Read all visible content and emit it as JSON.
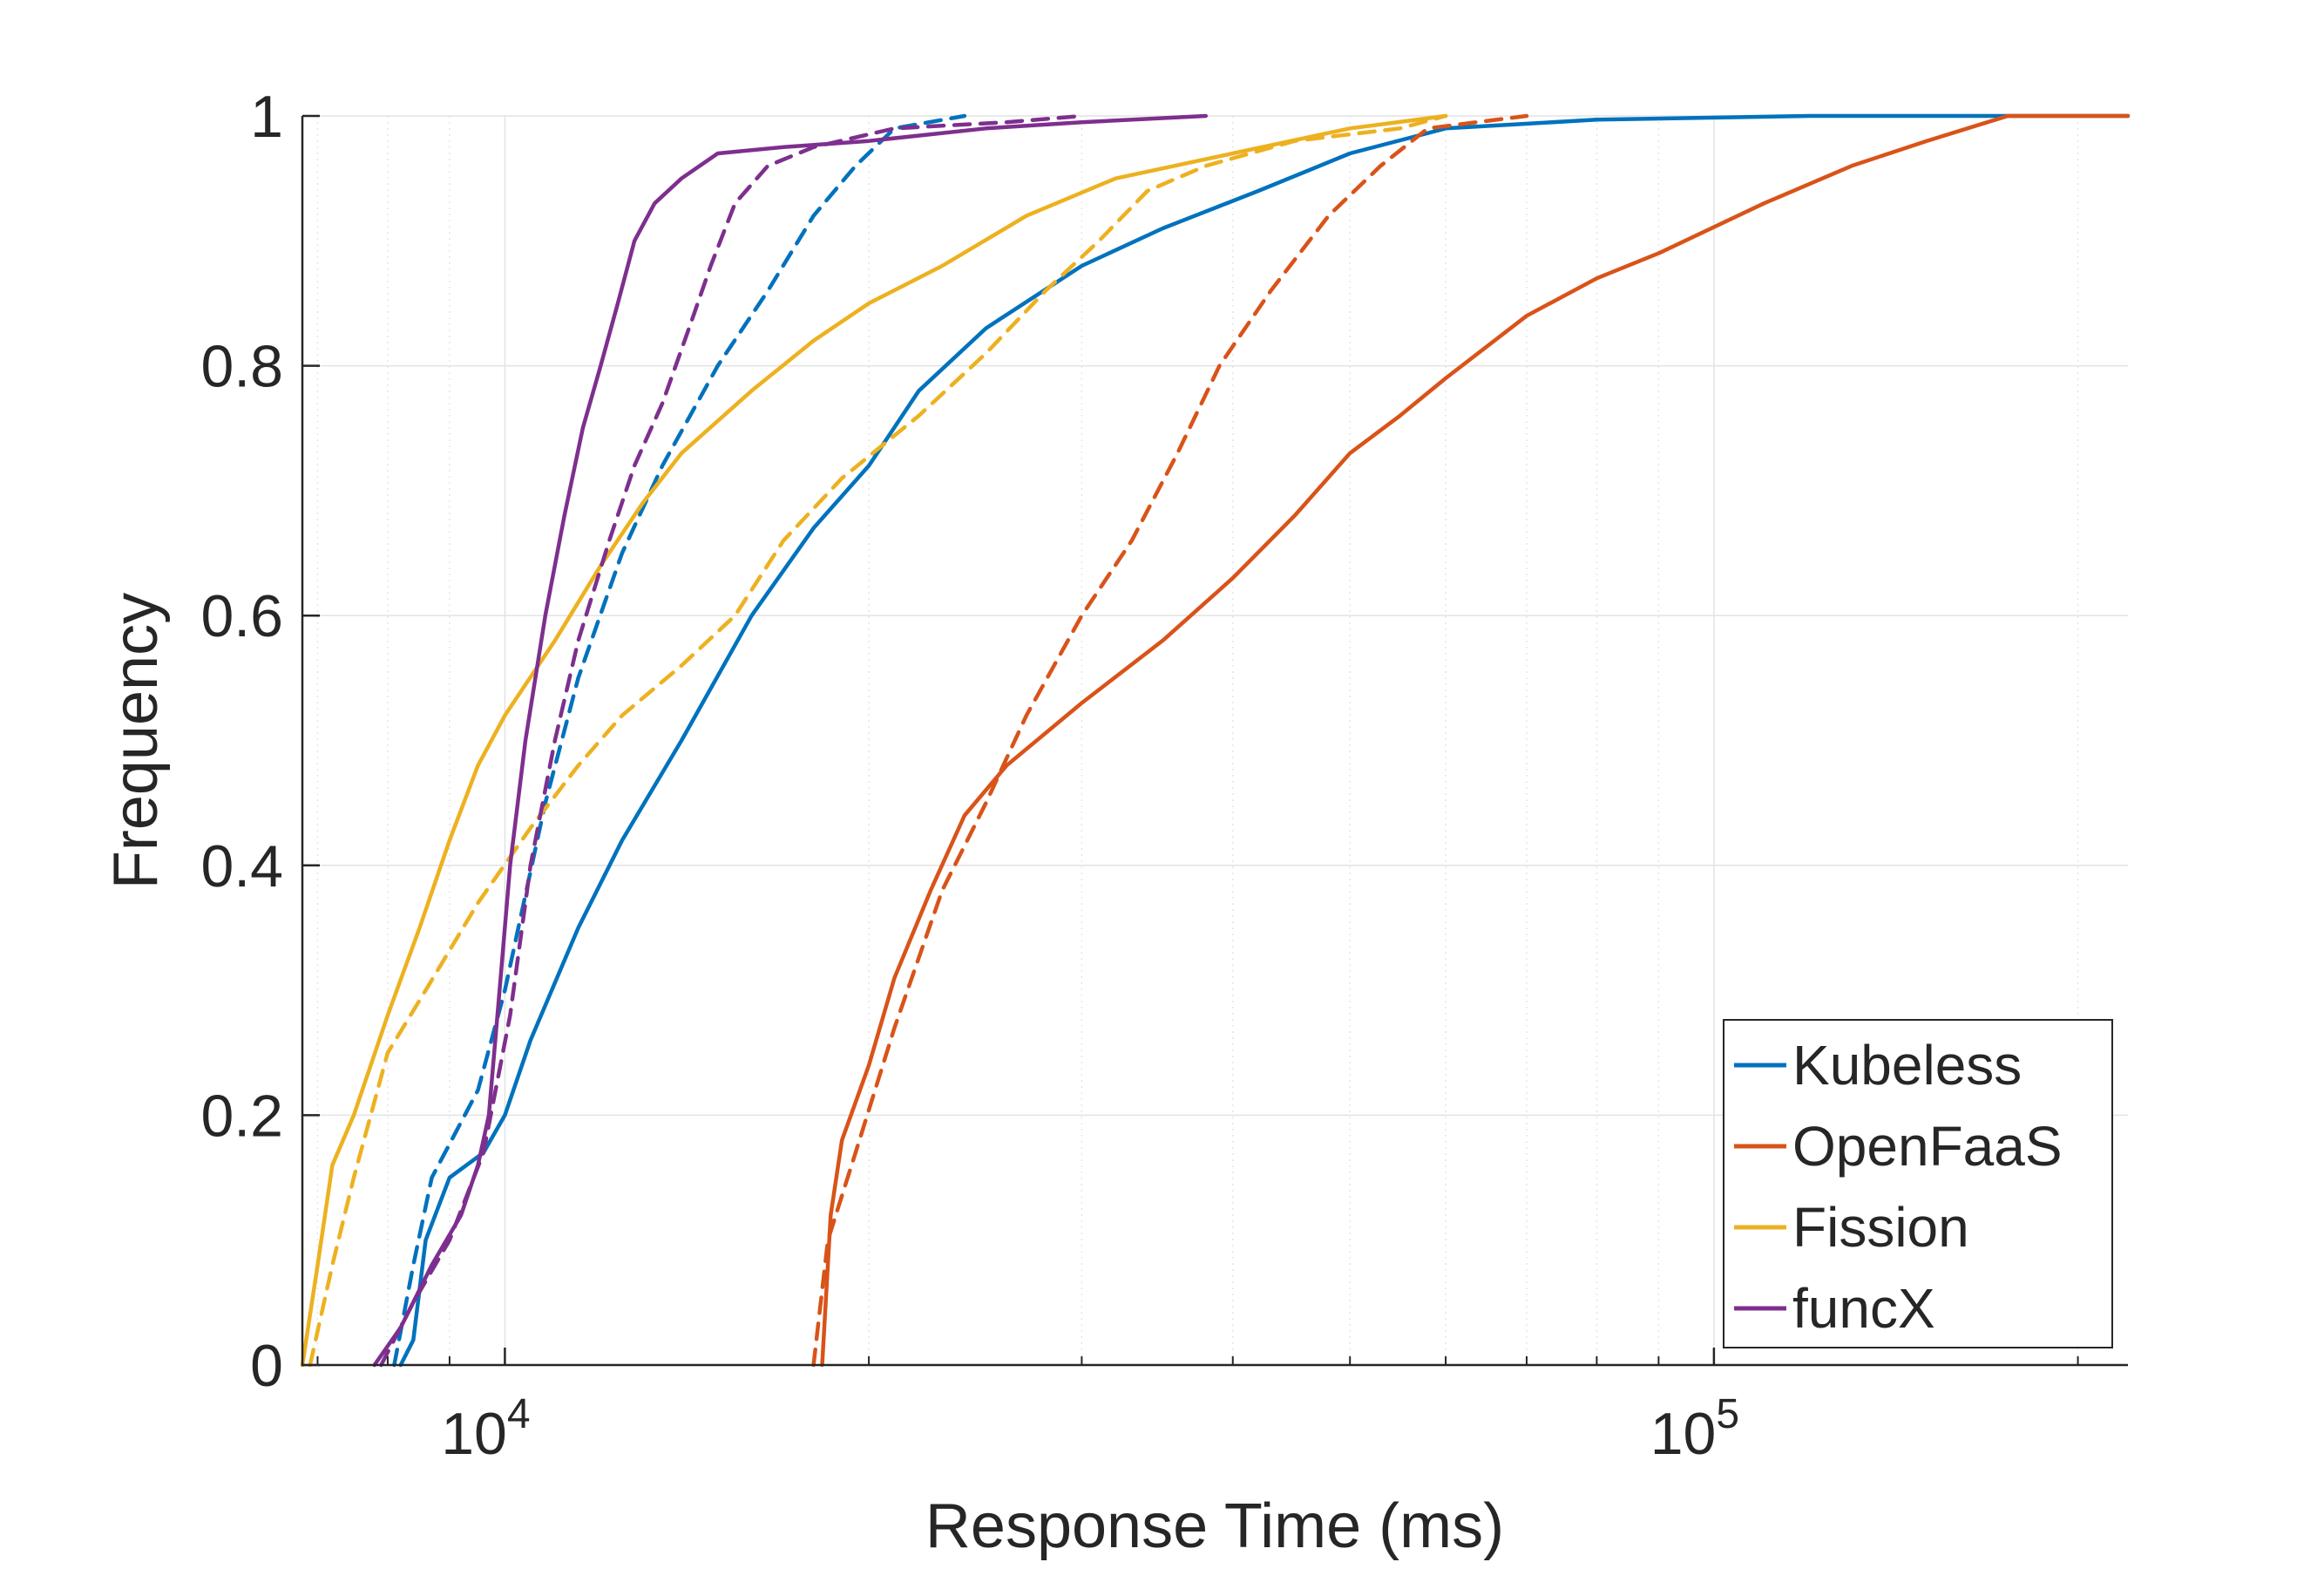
{
  "chart_data": {
    "type": "line",
    "title": "",
    "xlabel": "Response Time (ms)",
    "ylabel": "Frequency",
    "xscale": "log",
    "xlim": [
      6800,
      220000
    ],
    "ylim": [
      0,
      1
    ],
    "grid": true,
    "legend_position": "bottom-right",
    "x_ticks": [
      {
        "value": 10000,
        "base": "10",
        "exp": "4"
      },
      {
        "value": 100000,
        "base": "10",
        "exp": "5"
      }
    ],
    "y_ticks": [
      {
        "value": 0,
        "label": "0"
      },
      {
        "value": 0.2,
        "label": "0.2"
      },
      {
        "value": 0.4,
        "label": "0.4"
      },
      {
        "value": 0.6,
        "label": "0.6"
      },
      {
        "value": 0.8,
        "label": "0.8"
      },
      {
        "value": 1,
        "label": "1"
      }
    ],
    "legend": [
      {
        "name": "Kubeless",
        "color": "#0072BD"
      },
      {
        "name": "OpenFaaS",
        "color": "#D95319"
      },
      {
        "name": "Fission",
        "color": "#EDB120"
      },
      {
        "name": "funcX",
        "color": "#7E2F8E"
      }
    ],
    "series": [
      {
        "name": "Kubeless",
        "style": "solid",
        "color": "#0072BD",
        "points": [
          [
            8200,
            0
          ],
          [
            8400,
            0.02
          ],
          [
            8600,
            0.1
          ],
          [
            9000,
            0.15
          ],
          [
            9600,
            0.17
          ],
          [
            10000,
            0.2
          ],
          [
            10500,
            0.26
          ],
          [
            11500,
            0.35
          ],
          [
            12500,
            0.42
          ],
          [
            14000,
            0.5
          ],
          [
            16000,
            0.6
          ],
          [
            18000,
            0.67
          ],
          [
            20000,
            0.72
          ],
          [
            22000,
            0.78
          ],
          [
            25000,
            0.83
          ],
          [
            30000,
            0.88
          ],
          [
            35000,
            0.91
          ],
          [
            42000,
            0.94
          ],
          [
            50000,
            0.97
          ],
          [
            60000,
            0.99
          ],
          [
            80000,
            0.997
          ],
          [
            120000,
            1
          ],
          [
            220000,
            1
          ]
        ]
      },
      {
        "name": "Kubeless",
        "style": "dashed",
        "color": "#0072BD",
        "points": [
          [
            8100,
            0
          ],
          [
            8400,
            0.08
          ],
          [
            8700,
            0.15
          ],
          [
            9500,
            0.22
          ],
          [
            10000,
            0.3
          ],
          [
            10800,
            0.45
          ],
          [
            11500,
            0.55
          ],
          [
            12500,
            0.65
          ],
          [
            13500,
            0.72
          ],
          [
            15000,
            0.8
          ],
          [
            16500,
            0.86
          ],
          [
            18000,
            0.92
          ],
          [
            19500,
            0.96
          ],
          [
            21000,
            0.99
          ],
          [
            24000,
            1
          ]
        ]
      },
      {
        "name": "OpenFaaS",
        "style": "solid",
        "color": "#D95319",
        "points": [
          [
            18300,
            0
          ],
          [
            18600,
            0.12
          ],
          [
            19000,
            0.18
          ],
          [
            20000,
            0.24
          ],
          [
            21000,
            0.31
          ],
          [
            22500,
            0.38
          ],
          [
            24000,
            0.44
          ],
          [
            26000,
            0.48
          ],
          [
            30000,
            0.53
          ],
          [
            35000,
            0.58
          ],
          [
            40000,
            0.63
          ],
          [
            45000,
            0.68
          ],
          [
            50000,
            0.73
          ],
          [
            55000,
            0.76
          ],
          [
            60000,
            0.79
          ],
          [
            70000,
            0.84
          ],
          [
            80000,
            0.87
          ],
          [
            90000,
            0.89
          ],
          [
            110000,
            0.93
          ],
          [
            130000,
            0.96
          ],
          [
            150000,
            0.98
          ],
          [
            175000,
            1
          ],
          [
            220000,
            1
          ]
        ]
      },
      {
        "name": "OpenFaaS",
        "style": "dashed",
        "color": "#D95319",
        "points": [
          [
            18000,
            0
          ],
          [
            18500,
            0.1
          ],
          [
            19500,
            0.17
          ],
          [
            21000,
            0.27
          ],
          [
            23000,
            0.38
          ],
          [
            25000,
            0.45
          ],
          [
            27000,
            0.52
          ],
          [
            30000,
            0.6
          ],
          [
            33000,
            0.66
          ],
          [
            36000,
            0.73
          ],
          [
            39000,
            0.8
          ],
          [
            43000,
            0.86
          ],
          [
            48000,
            0.92
          ],
          [
            53000,
            0.96
          ],
          [
            58000,
            0.99
          ],
          [
            70000,
            1
          ]
        ]
      },
      {
        "name": "Fission",
        "style": "solid",
        "color": "#EDB120",
        "points": [
          [
            6800,
            0
          ],
          [
            7000,
            0.08
          ],
          [
            7200,
            0.16
          ],
          [
            7500,
            0.2
          ],
          [
            8000,
            0.28
          ],
          [
            8500,
            0.35
          ],
          [
            9000,
            0.42
          ],
          [
            9500,
            0.48
          ],
          [
            10000,
            0.52
          ],
          [
            11000,
            0.58
          ],
          [
            12000,
            0.64
          ],
          [
            13000,
            0.69
          ],
          [
            14000,
            0.73
          ],
          [
            16000,
            0.78
          ],
          [
            18000,
            0.82
          ],
          [
            20000,
            0.85
          ],
          [
            23000,
            0.88
          ],
          [
            27000,
            0.92
          ],
          [
            32000,
            0.95
          ],
          [
            40000,
            0.97
          ],
          [
            50000,
            0.99
          ],
          [
            60000,
            1
          ]
        ]
      },
      {
        "name": "Fission",
        "style": "dashed",
        "color": "#EDB120",
        "points": [
          [
            6900,
            0
          ],
          [
            7200,
            0.08
          ],
          [
            7500,
            0.15
          ],
          [
            8000,
            0.25
          ],
          [
            8600,
            0.3
          ],
          [
            9500,
            0.37
          ],
          [
            10500,
            0.43
          ],
          [
            11500,
            0.48
          ],
          [
            12500,
            0.52
          ],
          [
            14000,
            0.56
          ],
          [
            15500,
            0.6
          ],
          [
            17000,
            0.66
          ],
          [
            19000,
            0.71
          ],
          [
            22000,
            0.76
          ],
          [
            25000,
            0.81
          ],
          [
            28000,
            0.86
          ],
          [
            31000,
            0.9
          ],
          [
            34000,
            0.94
          ],
          [
            38000,
            0.96
          ],
          [
            45000,
            0.98
          ],
          [
            55000,
            0.99
          ],
          [
            60000,
            1
          ]
        ]
      },
      {
        "name": "funcX",
        "style": "solid",
        "color": "#7E2F8E",
        "points": [
          [
            7800,
            0
          ],
          [
            8200,
            0.03
          ],
          [
            8700,
            0.08
          ],
          [
            9200,
            0.12
          ],
          [
            9500,
            0.16
          ],
          [
            9700,
            0.2
          ],
          [
            9900,
            0.3
          ],
          [
            10100,
            0.4
          ],
          [
            10400,
            0.5
          ],
          [
            10800,
            0.6
          ],
          [
            11200,
            0.68
          ],
          [
            11600,
            0.75
          ],
          [
            12000,
            0.8
          ],
          [
            12400,
            0.85
          ],
          [
            12800,
            0.9
          ],
          [
            13300,
            0.93
          ],
          [
            14000,
            0.95
          ],
          [
            15000,
            0.97
          ],
          [
            17000,
            0.975
          ],
          [
            20000,
            0.98
          ],
          [
            25000,
            0.99
          ],
          [
            30000,
            0.995
          ],
          [
            38000,
            1
          ]
        ]
      },
      {
        "name": "funcX",
        "style": "dashed",
        "color": "#7E2F8E",
        "points": [
          [
            7900,
            0
          ],
          [
            8400,
            0.05
          ],
          [
            9000,
            0.1
          ],
          [
            9600,
            0.17
          ],
          [
            10100,
            0.28
          ],
          [
            10500,
            0.4
          ],
          [
            11000,
            0.5
          ],
          [
            11500,
            0.58
          ],
          [
            12200,
            0.66
          ],
          [
            12800,
            0.72
          ],
          [
            13500,
            0.77
          ],
          [
            14200,
            0.83
          ],
          [
            14800,
            0.88
          ],
          [
            15500,
            0.93
          ],
          [
            16500,
            0.96
          ],
          [
            18000,
            0.975
          ],
          [
            21000,
            0.99
          ],
          [
            26000,
            0.995
          ],
          [
            30000,
            1
          ]
        ]
      }
    ]
  }
}
